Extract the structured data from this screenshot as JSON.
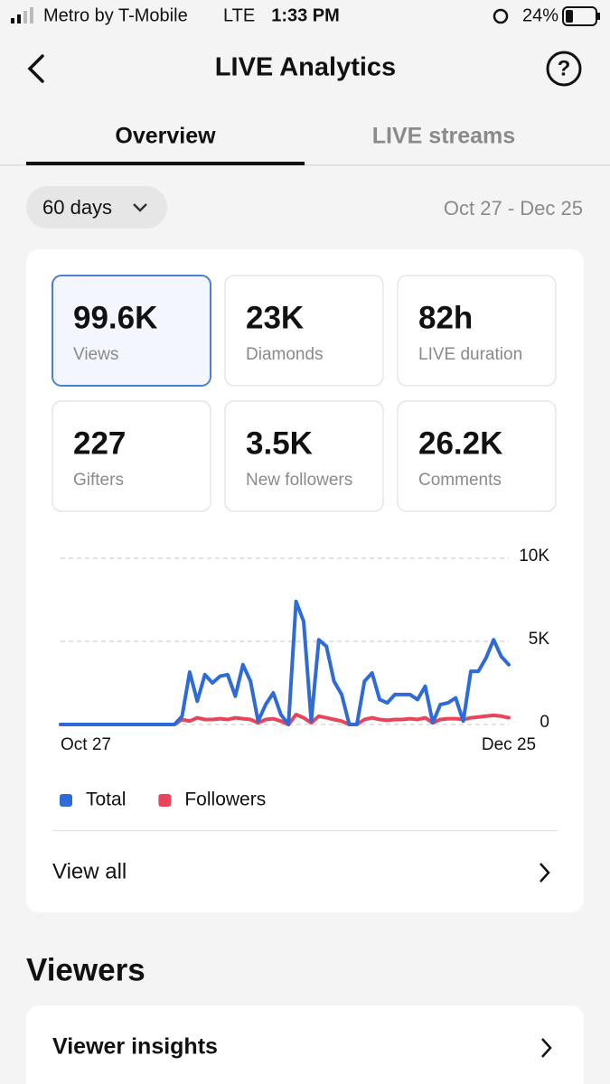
{
  "status_bar": {
    "carrier": "Metro by T-Mobile",
    "network": "LTE",
    "time": "1:33 PM",
    "battery": "24%"
  },
  "header": {
    "title": "LIVE Analytics"
  },
  "tabs": [
    "Overview",
    "LIVE streams"
  ],
  "filter": {
    "period": "60 days",
    "date_range": "Oct 27 - Dec 25"
  },
  "stats": [
    {
      "value": "99.6K",
      "label": "Views"
    },
    {
      "value": "23K",
      "label": "Diamonds"
    },
    {
      "value": "82h",
      "label": "LIVE duration"
    },
    {
      "value": "227",
      "label": "Gifters"
    },
    {
      "value": "3.5K",
      "label": "New followers"
    },
    {
      "value": "26.2K",
      "label": "Comments"
    }
  ],
  "chart_data": {
    "type": "line",
    "categories": [
      "Oct 27",
      null,
      null,
      null,
      null,
      null,
      null,
      null,
      null,
      null,
      null,
      null,
      null,
      null,
      null,
      null,
      null,
      null,
      null,
      null,
      null,
      null,
      null,
      null,
      null,
      null,
      null,
      null,
      null,
      null,
      null,
      null,
      null,
      null,
      null,
      null,
      null,
      null,
      null,
      null,
      null,
      null,
      null,
      null,
      null,
      null,
      null,
      null,
      null,
      null,
      null,
      null,
      null,
      null,
      null,
      null,
      null,
      null,
      null,
      "Dec 25"
    ],
    "series": [
      {
        "name": "Total",
        "color": "#2f6ad9",
        "values": [
          0,
          0,
          0,
          0,
          0,
          0,
          0,
          0,
          0,
          0,
          0,
          0,
          0,
          0,
          0,
          0,
          500,
          3150,
          1400,
          3000,
          2500,
          2900,
          3000,
          1700,
          3600,
          2600,
          200,
          1200,
          1900,
          600,
          0,
          7400,
          6200,
          200,
          5100,
          4700,
          2600,
          1800,
          0,
          0,
          2600,
          3100,
          1500,
          1300,
          1800,
          1800,
          1800,
          1500,
          2300,
          100,
          1200,
          1300,
          1600,
          200,
          3200,
          3200,
          4000,
          5100,
          4100,
          3600
        ]
      },
      {
        "name": "Followers",
        "color": "#e8445a",
        "values": [
          0,
          0,
          0,
          0,
          0,
          0,
          0,
          0,
          0,
          0,
          0,
          0,
          0,
          0,
          0,
          0,
          300,
          200,
          400,
          300,
          300,
          350,
          300,
          400,
          350,
          300,
          100,
          300,
          350,
          200,
          0,
          600,
          400,
          100,
          500,
          400,
          300,
          200,
          0,
          0,
          300,
          400,
          300,
          250,
          300,
          300,
          350,
          300,
          400,
          100,
          300,
          350,
          350,
          300,
          400,
          450,
          500,
          550,
          500,
          400
        ]
      }
    ],
    "ylim": [
      0,
      10000
    ],
    "yticks": [
      0,
      {
        "value": 5000,
        "label": "5K"
      },
      {
        "value": 10000,
        "label": "10K"
      }
    ],
    "grid": true,
    "legend": "bottom"
  },
  "view_all": "View all",
  "section_title": "Viewers",
  "viewer_insights": "Viewer insights"
}
